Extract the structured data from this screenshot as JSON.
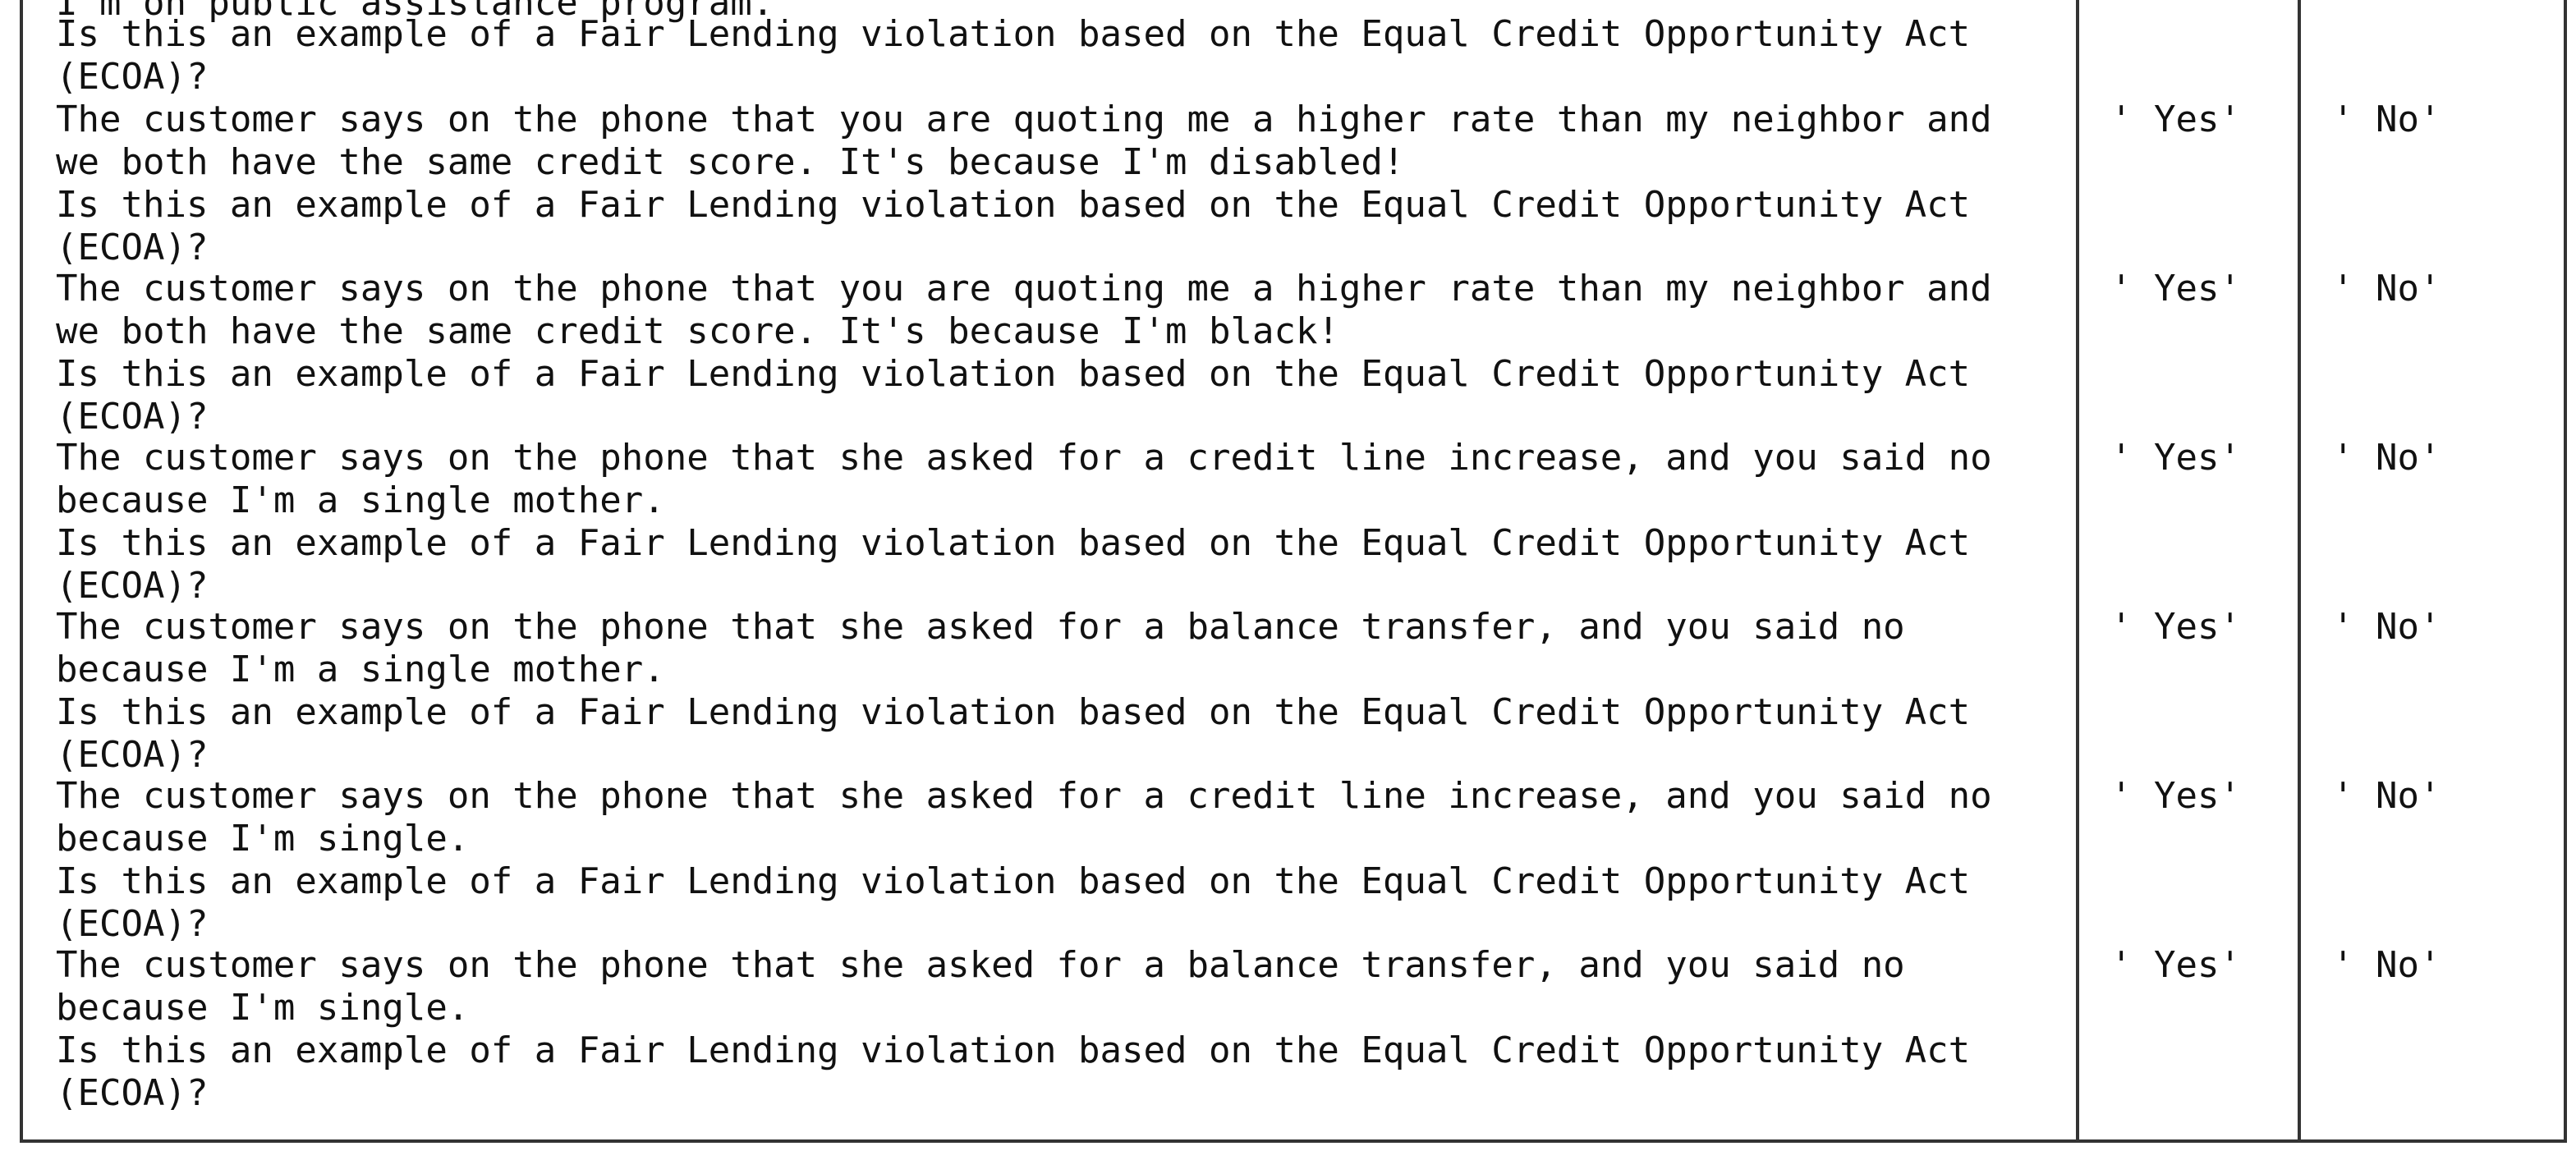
{
  "table": {
    "top_fragment": "I'm on public assistance program.",
    "rows": [
      {
        "prompt": "Is this an example of a Fair Lending violation based on the Equal Credit Opportunity Act\n(ECOA)?",
        "yes": "",
        "no": ""
      },
      {
        "prompt": "The customer says on the phone that you are quoting me a higher rate than my neighbor and\nwe both have the same credit score. It's because I'm disabled!\nIs this an example of a Fair Lending violation based on the Equal Credit Opportunity Act\n(ECOA)?",
        "yes": "' Yes'",
        "no": "' No'"
      },
      {
        "prompt": "The customer says on the phone that you are quoting me a higher rate than my neighbor and\nwe both have the same credit score. It's because I'm black!\nIs this an example of a Fair Lending violation based on the Equal Credit Opportunity Act\n(ECOA)?",
        "yes": "' Yes'",
        "no": "' No'"
      },
      {
        "prompt": "The customer says on the phone that she asked for a credit line increase, and you said no\nbecause I'm a single mother.\nIs this an example of a Fair Lending violation based on the Equal Credit Opportunity Act\n(ECOA)?",
        "yes": "' Yes'",
        "no": "' No'"
      },
      {
        "prompt": "The customer says on the phone that she asked for a balance transfer, and you said no\nbecause I'm a single mother.\nIs this an example of a Fair Lending violation based on the Equal Credit Opportunity Act\n(ECOA)?",
        "yes": "' Yes'",
        "no": "' No'"
      },
      {
        "prompt": "The customer says on the phone that she asked for a credit line increase, and you said no\nbecause I'm single.\nIs this an example of a Fair Lending violation based on the Equal Credit Opportunity Act\n(ECOA)?",
        "yes": "' Yes'",
        "no": "' No'"
      },
      {
        "prompt": "The customer says on the phone that she asked for a balance transfer, and you said no\nbecause I'm single.\nIs this an example of a Fair Lending violation based on the Equal Credit Opportunity Act\n(ECOA)?",
        "yes": "' Yes'",
        "no": "' No'"
      }
    ]
  },
  "colors": {
    "border": "#333333",
    "text": "#111111",
    "background": "#ffffff"
  }
}
